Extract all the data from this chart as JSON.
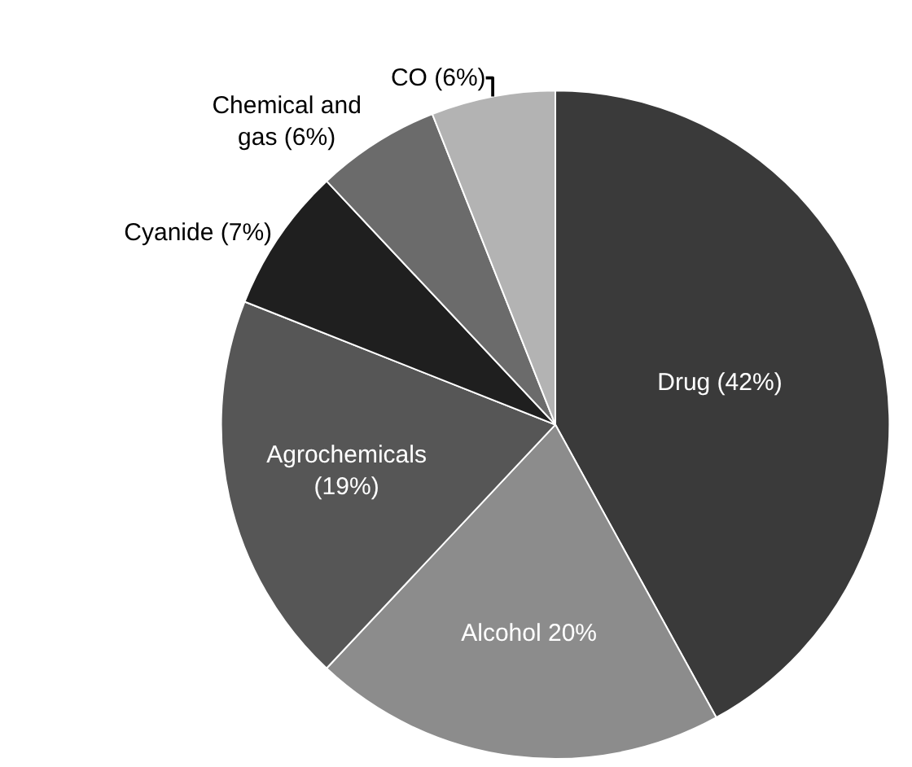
{
  "chart_data": {
    "type": "pie",
    "categories": [
      "Drug (42%)",
      "Alcohol 20%",
      "Agrochemicals (19%)",
      "Cyanide (7%)",
      "Chemical and gas (6%)",
      "CO (6%)"
    ],
    "values": [
      42,
      20,
      19,
      7,
      6,
      6
    ],
    "colors": [
      "#3a3a3a",
      "#8c8c8c",
      "#565656",
      "#1f1f1f",
      "#6b6b6b",
      "#b3b3b3"
    ],
    "legend": false
  }
}
